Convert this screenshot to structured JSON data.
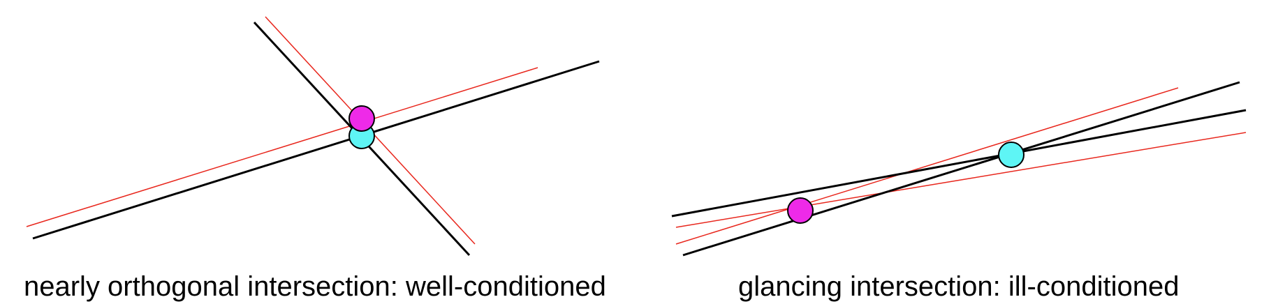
{
  "colors": {
    "exact_line": "#000000",
    "perturbed_line": "#e8261c",
    "exact_intersection": "#5ef5f5",
    "perturbed_intersection": "#ee2ae8"
  },
  "panels": [
    {
      "caption": "nearly orthogonal intersection: well-conditioned"
    },
    {
      "caption": "glancing intersection: ill-conditioned"
    }
  ]
}
